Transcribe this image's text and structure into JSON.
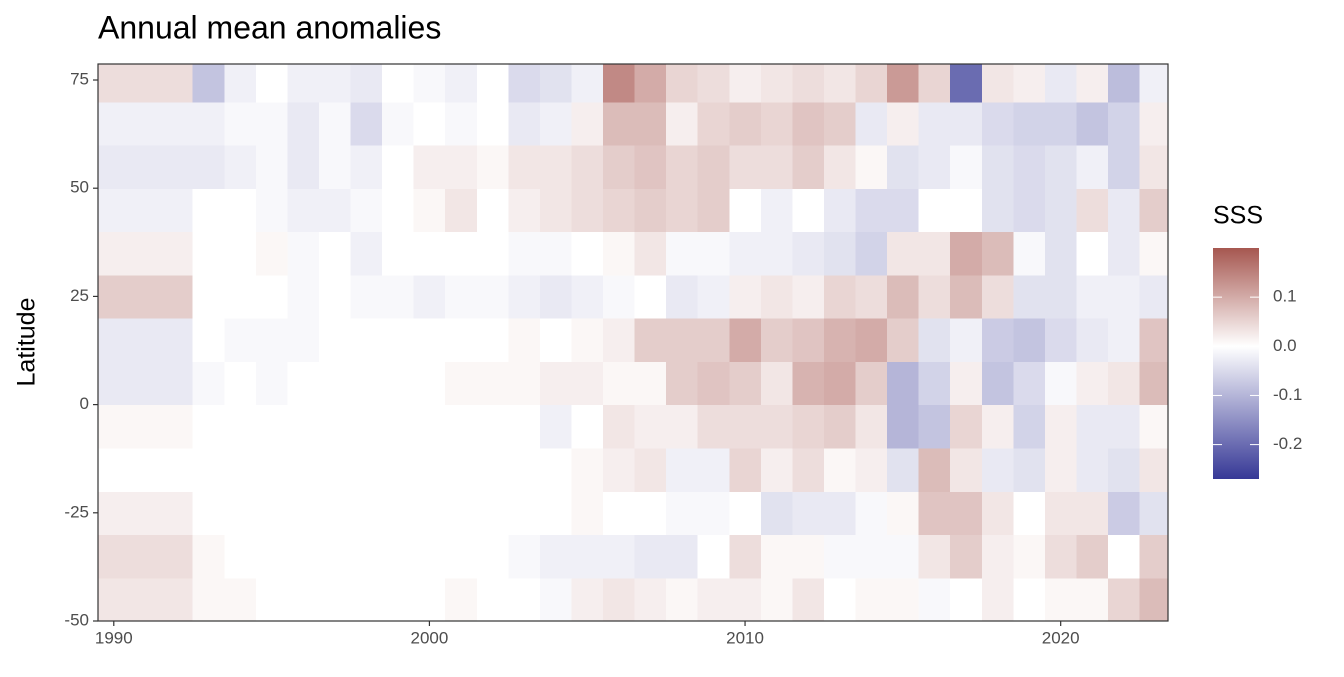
{
  "chart_data": {
    "type": "heatmap",
    "title": "Annual mean anomalies",
    "y_label": "Latitude",
    "legend_title": "SSS",
    "x": [
      1990,
      1991,
      1992,
      1993,
      1994,
      1995,
      1996,
      1997,
      1998,
      1999,
      2000,
      2001,
      2002,
      2003,
      2004,
      2005,
      2006,
      2007,
      2008,
      2009,
      2010,
      2011,
      2012,
      2013,
      2014,
      2015,
      2016,
      2017,
      2018,
      2019,
      2020,
      2021,
      2022,
      2023
    ],
    "y": [
      -45,
      -35,
      -25,
      -15,
      -5,
      5,
      15,
      25,
      35,
      45,
      55,
      65,
      75
    ],
    "values": [
      [
        0.03,
        0.04,
        0.02,
        0.0,
        0.01,
        -0.03,
        -0.03,
        0.06,
        0.02,
        -0.02,
        -0.03,
        -0.02,
        0.04
      ],
      [
        0.03,
        0.04,
        0.02,
        0.0,
        0.01,
        -0.03,
        -0.03,
        0.06,
        0.02,
        -0.02,
        -0.03,
        -0.02,
        0.04
      ],
      [
        0.03,
        0.04,
        0.02,
        0.0,
        0.01,
        -0.03,
        -0.03,
        0.06,
        0.02,
        -0.02,
        -0.03,
        -0.02,
        0.04
      ],
      [
        0.01,
        0.01,
        0.0,
        0.0,
        0.0,
        -0.01,
        0.0,
        0.0,
        0.0,
        0.0,
        -0.03,
        -0.02,
        -0.08
      ],
      [
        0.01,
        0.0,
        0.0,
        0.0,
        0.0,
        0.0,
        -0.01,
        0.0,
        0.0,
        0.0,
        -0.02,
        -0.01,
        -0.02
      ],
      [
        0,
        0,
        0,
        0,
        0,
        -0.01,
        -0.01,
        0,
        0.01,
        -0.01,
        -0.01,
        -0.01,
        0
      ],
      [
        0,
        0,
        0,
        0,
        0,
        0,
        -0.01,
        -0.01,
        -0.01,
        -0.02,
        -0.03,
        -0.03,
        -0.02
      ],
      [
        0,
        0,
        0,
        0,
        0,
        0,
        0,
        0,
        0,
        -0.02,
        -0.01,
        -0.01,
        -0.02
      ],
      [
        0,
        0,
        0,
        0,
        0,
        0,
        0,
        -0.01,
        -0.02,
        -0.01,
        -0.02,
        -0.05,
        -0.03
      ],
      [
        0,
        0,
        0,
        0,
        0,
        0,
        0,
        -0.01,
        0,
        0,
        0,
        -0.01,
        0
      ],
      [
        0,
        0,
        0,
        0,
        0,
        0,
        0,
        -0.02,
        0,
        0.01,
        0.02,
        0,
        -0.01
      ],
      [
        0.01,
        0,
        0,
        0,
        0,
        0.01,
        0,
        -0.01,
        0,
        0.03,
        0.02,
        -0.01,
        -0.02
      ],
      [
        0,
        0,
        0,
        0,
        0,
        0.01,
        0,
        -0.01,
        0,
        0,
        0.01,
        0,
        0
      ],
      [
        0,
        -0.01,
        0,
        0,
        0,
        0.01,
        0.01,
        -0.02,
        -0.01,
        0.02,
        0.03,
        -0.03,
        -0.05
      ],
      [
        -0.01,
        -0.02,
        0,
        0,
        -0.02,
        0.02,
        0.0,
        -0.03,
        -0.01,
        0.03,
        0.03,
        -0.02,
        -0.04
      ],
      [
        0.02,
        -0.02,
        0.01,
        0.01,
        0,
        0.02,
        0.01,
        -0.02,
        0,
        0.04,
        0.04,
        0.02,
        -0.02
      ],
      [
        0.03,
        -0.02,
        0.0,
        0.02,
        0.03,
        0.01,
        0.02,
        -0.01,
        0.01,
        0.05,
        0.06,
        0.08,
        0.14
      ],
      [
        0.02,
        -0.03,
        0.0,
        0.03,
        0.02,
        0.01,
        0.06,
        0.0,
        0.03,
        0.06,
        0.07,
        0.08,
        0.1
      ],
      [
        0.01,
        -0.03,
        -0.01,
        -0.02,
        0.02,
        0.06,
        0.06,
        -0.03,
        -0.01,
        0.05,
        0.05,
        0.02,
        0.05
      ],
      [
        0.02,
        0.0,
        -0.01,
        -0.02,
        0.04,
        0.07,
        0.06,
        -0.02,
        -0.01,
        0.06,
        0.06,
        0.05,
        0.04
      ],
      [
        0.02,
        0.04,
        0.0,
        0.05,
        0.04,
        0.06,
        0.1,
        0.02,
        -0.02,
        0.0,
        0.04,
        0.06,
        0.02
      ],
      [
        0.01,
        0.01,
        -0.04,
        0.02,
        0.04,
        0.03,
        0.06,
        0.03,
        -0.02,
        -0.02,
        0.04,
        0.05,
        0.03
      ],
      [
        0.03,
        0.01,
        -0.03,
        0.04,
        0.05,
        0.09,
        0.07,
        0.02,
        -0.03,
        0.0,
        0.06,
        0.07,
        0.04
      ],
      [
        0.0,
        -0.01,
        -0.03,
        0.01,
        0.06,
        0.1,
        0.09,
        0.05,
        -0.04,
        -0.03,
        0.03,
        0.06,
        0.03
      ],
      [
        0.01,
        -0.01,
        -0.01,
        0.02,
        0.03,
        0.06,
        0.1,
        0.04,
        -0.06,
        -0.05,
        0.01,
        -0.03,
        0.05
      ],
      [
        0.01,
        -0.01,
        0.01,
        -0.04,
        -0.1,
        -0.1,
        0.06,
        0.08,
        0.03,
        -0.05,
        -0.04,
        0.02,
        0.12
      ],
      [
        -0.01,
        0.03,
        0.07,
        0.08,
        -0.08,
        -0.06,
        -0.04,
        0.04,
        0.03,
        0.0,
        -0.03,
        -0.03,
        0.05
      ],
      [
        0.0,
        0.06,
        0.07,
        0.03,
        0.05,
        0.02,
        -0.02,
        0.08,
        0.1,
        0.0,
        -0.01,
        -0.03,
        -0.2
      ],
      [
        0.02,
        0.02,
        0.03,
        -0.03,
        0.02,
        -0.08,
        -0.07,
        0.04,
        0.08,
        -0.04,
        -0.04,
        -0.05,
        0.03
      ],
      [
        0.0,
        0.01,
        0.0,
        -0.04,
        -0.06,
        -0.05,
        -0.08,
        -0.04,
        -0.01,
        -0.05,
        -0.05,
        -0.06,
        0.02
      ],
      [
        0.01,
        0.04,
        0.03,
        0.02,
        0.02,
        -0.01,
        -0.05,
        -0.04,
        -0.04,
        -0.04,
        -0.04,
        -0.06,
        -0.03
      ],
      [
        0.01,
        0.06,
        0.03,
        -0.03,
        -0.03,
        0.02,
        -0.03,
        -0.02,
        0.0,
        0.04,
        -0.02,
        -0.08,
        0.02
      ],
      [
        0.05,
        0.0,
        -0.07,
        -0.04,
        -0.03,
        0.03,
        -0.02,
        -0.02,
        -0.03,
        -0.03,
        -0.06,
        -0.06,
        -0.09
      ],
      [
        0.08,
        0.06,
        -0.04,
        0.03,
        0.01,
        0.08,
        0.07,
        -0.03,
        0.01,
        0.06,
        0.03,
        0.02,
        -0.02
      ]
    ],
    "cell_width": 1,
    "cell_height": 10,
    "xlim": [
      1989.5,
      2023.4
    ],
    "xticks": [
      1990,
      2000,
      2010,
      2020
    ],
    "ylim": [
      -50,
      78.7
    ],
    "yticks": [
      -50,
      -25,
      0,
      25,
      50,
      75
    ],
    "zlim": [
      -0.27,
      0.2
    ],
    "zticks": [
      0.1,
      {
        "value": 0,
        "label": "0.0"
      },
      -0.1,
      -0.2
    ],
    "colors": {
      "low": "#363896",
      "mid": "#ffffff",
      "high": "#a65750"
    }
  }
}
